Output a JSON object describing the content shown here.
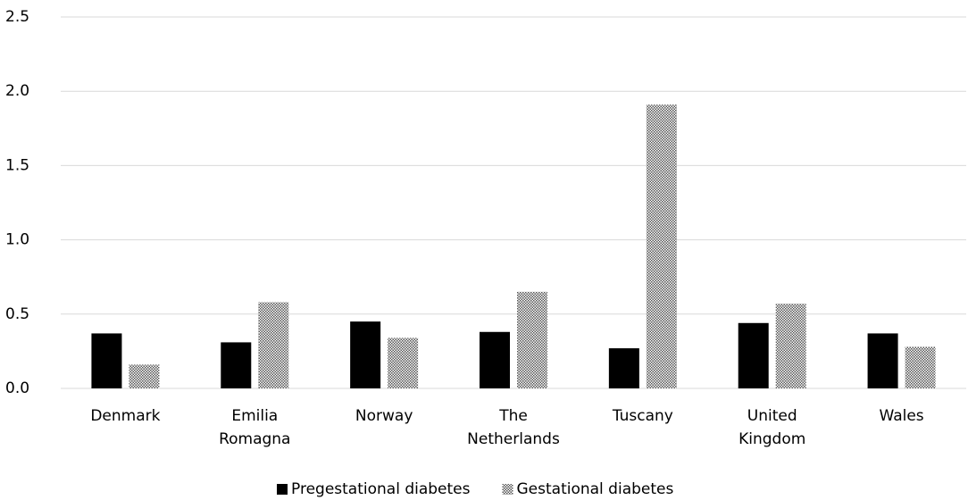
{
  "chart_data": {
    "type": "bar",
    "categories": [
      "Denmark",
      "Emilia Romagna",
      "Norway",
      "The Netherlands",
      "Tuscany",
      "United Kingdom",
      "Wales"
    ],
    "series": [
      {
        "name": "Pregestational diabetes",
        "color": "#000000",
        "pattern": "solid",
        "values": [
          0.37,
          0.31,
          0.45,
          0.38,
          0.27,
          0.44,
          0.37
        ]
      },
      {
        "name": "Gestational diabetes",
        "color": "#555555",
        "pattern": "checker",
        "values": [
          0.16,
          0.58,
          0.34,
          0.65,
          1.91,
          0.57,
          0.28
        ]
      }
    ],
    "ylim": [
      0,
      2.5
    ],
    "yticks": [
      {
        "value": 0,
        "label": "0.0"
      },
      0.5,
      {
        "value": 1,
        "label": "1.0"
      },
      1.5,
      {
        "value": 2,
        "label": "2.0"
      },
      2.5
    ],
    "grid": true,
    "legend": "bottom"
  }
}
